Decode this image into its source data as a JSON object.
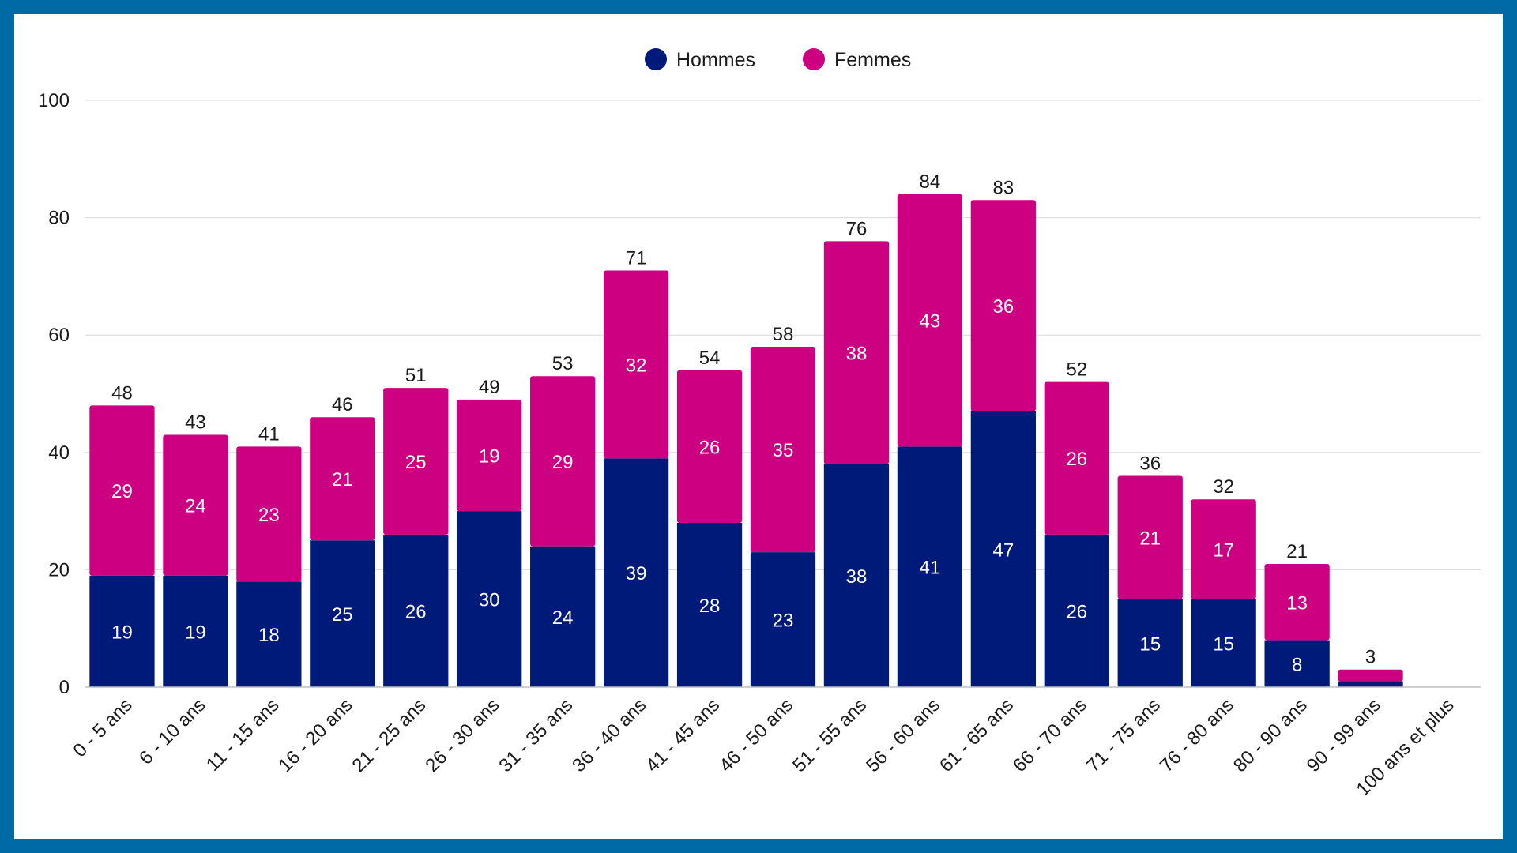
{
  "chart_data": {
    "type": "bar",
    "stacked": true,
    "categories": [
      "0 - 5 ans",
      "6 - 10 ans",
      "11 - 15 ans",
      "16 - 20 ans",
      "21 - 25 ans",
      "26 - 30 ans",
      "31 - 35 ans",
      "36 - 40 ans",
      "41 - 45 ans",
      "46 - 50 ans",
      "51 - 55 ans",
      "56 - 60 ans",
      "61 - 65 ans",
      "66 - 70 ans",
      "71 - 75 ans",
      "76 - 80 ans",
      "80 - 90 ans",
      "90 - 99 ans",
      "100 ans et plus"
    ],
    "series": [
      {
        "name": "Hommes",
        "color": "#001a7a",
        "values": [
          19,
          19,
          18,
          25,
          26,
          30,
          24,
          39,
          28,
          23,
          38,
          41,
          47,
          26,
          15,
          15,
          8,
          1,
          0
        ],
        "labels": [
          "19",
          "19",
          "18",
          "25",
          "26",
          "30",
          "24",
          "39",
          "28",
          "23",
          "38",
          "41",
          "47",
          "26",
          "15",
          "15",
          "8",
          "",
          ""
        ]
      },
      {
        "name": "Femmes",
        "color": "#cc0080",
        "values": [
          29,
          24,
          23,
          21,
          25,
          19,
          29,
          32,
          26,
          35,
          38,
          43,
          36,
          26,
          21,
          17,
          13,
          2,
          0
        ],
        "labels": [
          "29",
          "24",
          "23",
          "21",
          "25",
          "19",
          "29",
          "32",
          "26",
          "35",
          "38",
          "43",
          "36",
          "26",
          "21",
          "17",
          "13",
          "",
          ""
        ]
      }
    ],
    "totals": [
      48,
      43,
      41,
      46,
      51,
      49,
      53,
      71,
      54,
      58,
      76,
      84,
      83,
      52,
      36,
      32,
      21,
      3,
      null
    ],
    "yticks": [
      0,
      20,
      40,
      60,
      80,
      100
    ],
    "ylim": [
      0,
      100
    ],
    "title": "",
    "xlabel": "",
    "ylabel": "",
    "legend_position": "top-center",
    "grid": true,
    "frame_color": "#006aa6"
  }
}
